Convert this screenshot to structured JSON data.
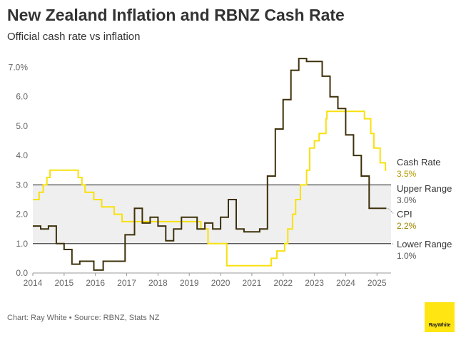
{
  "title": "New Zealand Inflation and RBNZ Cash Rate",
  "subtitle": "Official cash rate vs inflation",
  "source": "Chart: Ray White • Source: RBNZ, Stats NZ",
  "logo_text": "RayWhite",
  "colors": {
    "cash_rate": "#f8e10c",
    "cpi": "#3d300a",
    "band": "#efefef",
    "band_line": "#444444",
    "axis_text": "#666666",
    "cash_label_value": "#b59a00",
    "cpi_label_value": "#9c8400"
  },
  "chart_data": {
    "type": "line",
    "title": "New Zealand Inflation and RBNZ Cash Rate",
    "subtitle": "Official cash rate vs inflation",
    "xlabel": "",
    "ylabel": "",
    "xlim": [
      2014.0,
      2025.45
    ],
    "ylim": [
      0,
      7.4
    ],
    "y_ticks": [
      0,
      1,
      2,
      3,
      4,
      5,
      6,
      7
    ],
    "y_tick_labels": [
      "0.0",
      "1.0",
      "2.0",
      "3.0",
      "4.0",
      "5.0",
      "6.0",
      "7.0%"
    ],
    "x_ticks": [
      2014,
      2015,
      2016,
      2017,
      2018,
      2019,
      2020,
      2021,
      2022,
      2023,
      2024,
      2025
    ],
    "x_tick_labels": [
      "2014",
      "2015",
      "2016",
      "2017",
      "2018",
      "2019",
      "2020",
      "2021",
      "2022",
      "2023",
      "2024",
      "2025"
    ],
    "grid": false,
    "target_band": {
      "lower": 1.0,
      "upper": 3.0,
      "upper_label": "Upper Range",
      "upper_value_label": "3.0%",
      "lower_label": "Lower Range",
      "lower_value_label": "1.0%"
    },
    "series": [
      {
        "name": "Cash Rate",
        "value_label": "3.5%",
        "step": true,
        "points": [
          [
            2014.0,
            2.5
          ],
          [
            2014.2,
            2.75
          ],
          [
            2014.33,
            3.0
          ],
          [
            2014.45,
            3.25
          ],
          [
            2014.55,
            3.5
          ],
          [
            2015.45,
            3.25
          ],
          [
            2015.57,
            3.0
          ],
          [
            2015.67,
            2.75
          ],
          [
            2015.85,
            2.75
          ],
          [
            2015.95,
            2.5
          ],
          [
            2016.2,
            2.25
          ],
          [
            2016.6,
            2.0
          ],
          [
            2016.85,
            1.75
          ],
          [
            2019.37,
            1.5
          ],
          [
            2019.6,
            1.0
          ],
          [
            2020.2,
            0.25
          ],
          [
            2021.62,
            0.5
          ],
          [
            2021.8,
            0.75
          ],
          [
            2022.05,
            1.0
          ],
          [
            2022.15,
            1.5
          ],
          [
            2022.3,
            2.0
          ],
          [
            2022.4,
            2.5
          ],
          [
            2022.55,
            3.0
          ],
          [
            2022.75,
            3.5
          ],
          [
            2022.85,
            4.25
          ],
          [
            2023.0,
            4.5
          ],
          [
            2023.15,
            4.75
          ],
          [
            2023.37,
            5.25
          ],
          [
            2023.4,
            5.5
          ],
          [
            2024.6,
            5.25
          ],
          [
            2024.8,
            4.75
          ],
          [
            2024.9,
            4.25
          ],
          [
            2025.1,
            3.75
          ],
          [
            2025.27,
            3.5
          ],
          [
            2025.3,
            3.5
          ]
        ]
      },
      {
        "name": "CPI",
        "value_label": "2.2%",
        "step": true,
        "points": [
          [
            2014.0,
            1.6
          ],
          [
            2014.25,
            1.5
          ],
          [
            2014.5,
            1.6
          ],
          [
            2014.75,
            1.0
          ],
          [
            2015.0,
            0.8
          ],
          [
            2015.25,
            0.3
          ],
          [
            2015.5,
            0.4
          ],
          [
            2015.95,
            0.1
          ],
          [
            2016.25,
            0.4
          ],
          [
            2016.95,
            1.3
          ],
          [
            2017.25,
            2.2
          ],
          [
            2017.5,
            1.7
          ],
          [
            2017.75,
            1.9
          ],
          [
            2018.0,
            1.6
          ],
          [
            2018.25,
            1.1
          ],
          [
            2018.5,
            1.5
          ],
          [
            2018.75,
            1.9
          ],
          [
            2019.25,
            1.5
          ],
          [
            2019.5,
            1.7
          ],
          [
            2019.75,
            1.5
          ],
          [
            2020.0,
            1.9
          ],
          [
            2020.25,
            2.5
          ],
          [
            2020.5,
            1.5
          ],
          [
            2020.75,
            1.4
          ],
          [
            2021.25,
            1.5
          ],
          [
            2021.5,
            3.3
          ],
          [
            2021.75,
            4.9
          ],
          [
            2022.0,
            5.9
          ],
          [
            2022.25,
            6.9
          ],
          [
            2022.5,
            7.3
          ],
          [
            2022.75,
            7.2
          ],
          [
            2023.25,
            6.7
          ],
          [
            2023.5,
            6.0
          ],
          [
            2023.75,
            5.6
          ],
          [
            2024.0,
            4.7
          ],
          [
            2024.25,
            4.0
          ],
          [
            2024.5,
            3.3
          ],
          [
            2024.75,
            2.2
          ],
          [
            2025.3,
            2.2
          ]
        ]
      }
    ]
  }
}
